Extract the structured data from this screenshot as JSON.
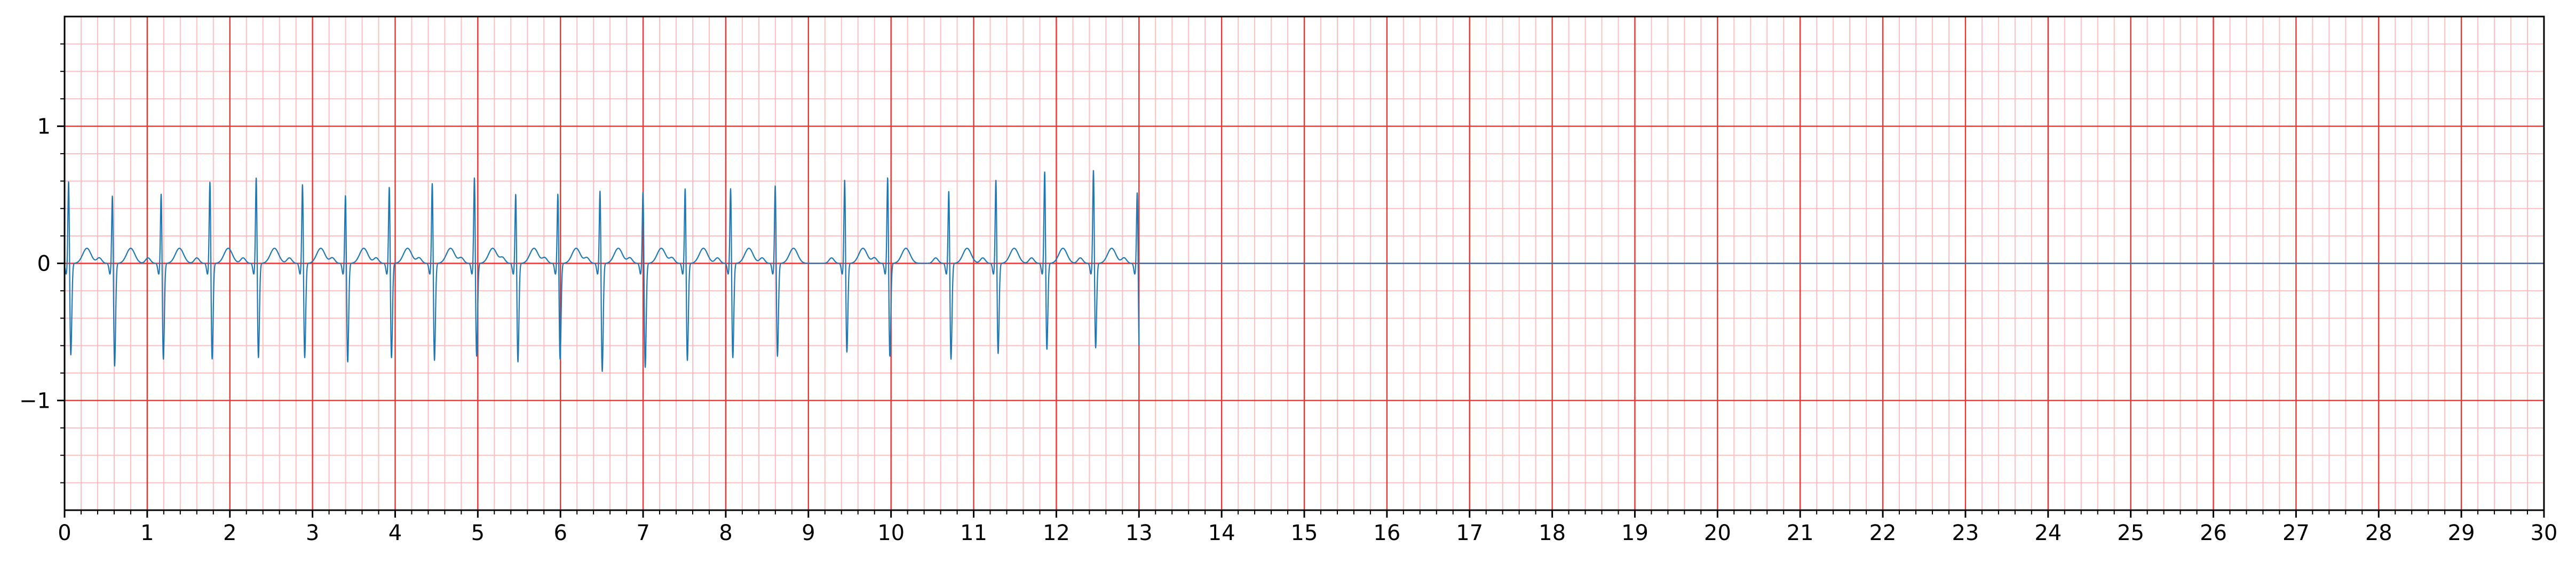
{
  "chart_data": {
    "type": "line",
    "title": "",
    "xlabel": "",
    "ylabel": "",
    "xlim": [
      0,
      30
    ],
    "ylim": [
      -1.8,
      1.8
    ],
    "x_ticks": [
      "0",
      "1",
      "2",
      "3",
      "4",
      "5",
      "6",
      "7",
      "8",
      "9",
      "10",
      "11",
      "12",
      "13",
      "14",
      "15",
      "16",
      "17",
      "18",
      "19",
      "20",
      "21",
      "22",
      "23",
      "24",
      "25",
      "26",
      "27",
      "28",
      "29",
      "30"
    ],
    "y_ticks": [
      {
        "value": 1,
        "label": "1"
      },
      {
        "value": 0,
        "label": "0"
      },
      {
        "value": -1,
        "label": "−1"
      }
    ],
    "grid": "on",
    "ecg_paper": {
      "major_step_x": 1,
      "minor_step_x": 0.2,
      "major_step_y": 1,
      "minor_step_y": 0.2
    },
    "series": [
      {
        "sampling": "beat-model",
        "signal_end": 13.0,
        "baseline_after_end": 0,
        "beats": [
          {
            "t": 0.05,
            "r": 0.62,
            "s": -0.68
          },
          {
            "t": 0.58,
            "r": 0.52,
            "s": -0.76
          },
          {
            "t": 1.17,
            "r": 0.53,
            "s": -0.71
          },
          {
            "t": 1.76,
            "r": 0.62,
            "s": -0.71
          },
          {
            "t": 2.32,
            "r": 0.65,
            "s": -0.7
          },
          {
            "t": 2.88,
            "r": 0.6,
            "s": -0.7
          },
          {
            "t": 3.4,
            "r": 0.52,
            "s": -0.73
          },
          {
            "t": 3.93,
            "r": 0.58,
            "s": -0.7
          },
          {
            "t": 4.45,
            "r": 0.61,
            "s": -0.72
          },
          {
            "t": 4.96,
            "r": 0.65,
            "s": -0.69
          },
          {
            "t": 5.46,
            "r": 0.53,
            "s": -0.73
          },
          {
            "t": 5.97,
            "r": 0.53,
            "s": -0.71
          },
          {
            "t": 6.48,
            "r": 0.56,
            "s": -0.8
          },
          {
            "t": 7.0,
            "r": 0.55,
            "s": -0.77
          },
          {
            "t": 7.51,
            "r": 0.57,
            "s": -0.72
          },
          {
            "t": 8.06,
            "r": 0.57,
            "s": -0.7
          },
          {
            "t": 8.6,
            "r": 0.59,
            "s": -0.69
          },
          {
            "t": 9.44,
            "r": 0.63,
            "s": -0.66
          },
          {
            "t": 9.96,
            "r": 0.65,
            "s": -0.69
          },
          {
            "t": 10.7,
            "r": 0.55,
            "s": -0.71
          },
          {
            "t": 11.27,
            "r": 0.63,
            "s": -0.67
          },
          {
            "t": 11.86,
            "r": 0.69,
            "s": -0.64
          },
          {
            "t": 12.45,
            "r": 0.7,
            "s": -0.63
          },
          {
            "t": 12.98,
            "r": 0.54,
            "s": -0.71
          }
        ],
        "color": "#1f77b4"
      }
    ]
  },
  "colors": {
    "major_grid": "#ee3333",
    "minor_grid": "#ffbfbf",
    "trace": "#1f77b4",
    "axis": "#000000"
  }
}
